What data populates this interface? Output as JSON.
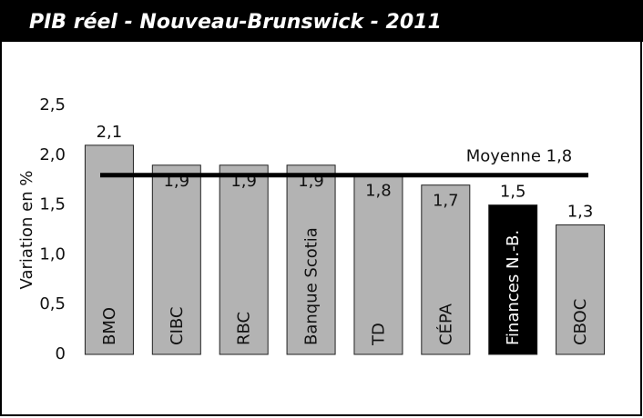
{
  "chart_data": {
    "type": "bar",
    "title": "PIB réel - Nouveau-Brunswick - 2011",
    "y_label": "Variation en %",
    "categories": [
      "BMO",
      "CIBC",
      "RBC",
      "Banque Scotia",
      "TD",
      "CÉPA",
      "Finances N.-B.",
      "CBOC"
    ],
    "values": [
      2.1,
      1.9,
      1.9,
      1.9,
      1.8,
      1.7,
      1.5,
      1.3
    ],
    "value_labels": [
      "2,1",
      "1,9",
      "1,9",
      "1,9",
      "1,8",
      "1,7",
      "1,5",
      "1,3"
    ],
    "colors": [
      "#b3b3b3",
      "#b3b3b3",
      "#b3b3b3",
      "#b3b3b3",
      "#b3b3b3",
      "#b3b3b3",
      "#000000",
      "#b3b3b3"
    ],
    "average": {
      "value": 1.8,
      "label": "Moyenne 1,8"
    },
    "ylim": [
      0,
      2.5
    ],
    "yticks": [
      0,
      {
        "value": 0.5,
        "label": "0,5"
      },
      {
        "value": 1,
        "label": "1,0"
      },
      {
        "value": 1.5,
        "label": "1,5"
      },
      {
        "value": 2,
        "label": "2,0"
      },
      {
        "value": 2.5,
        "label": "2,5"
      }
    ]
  }
}
